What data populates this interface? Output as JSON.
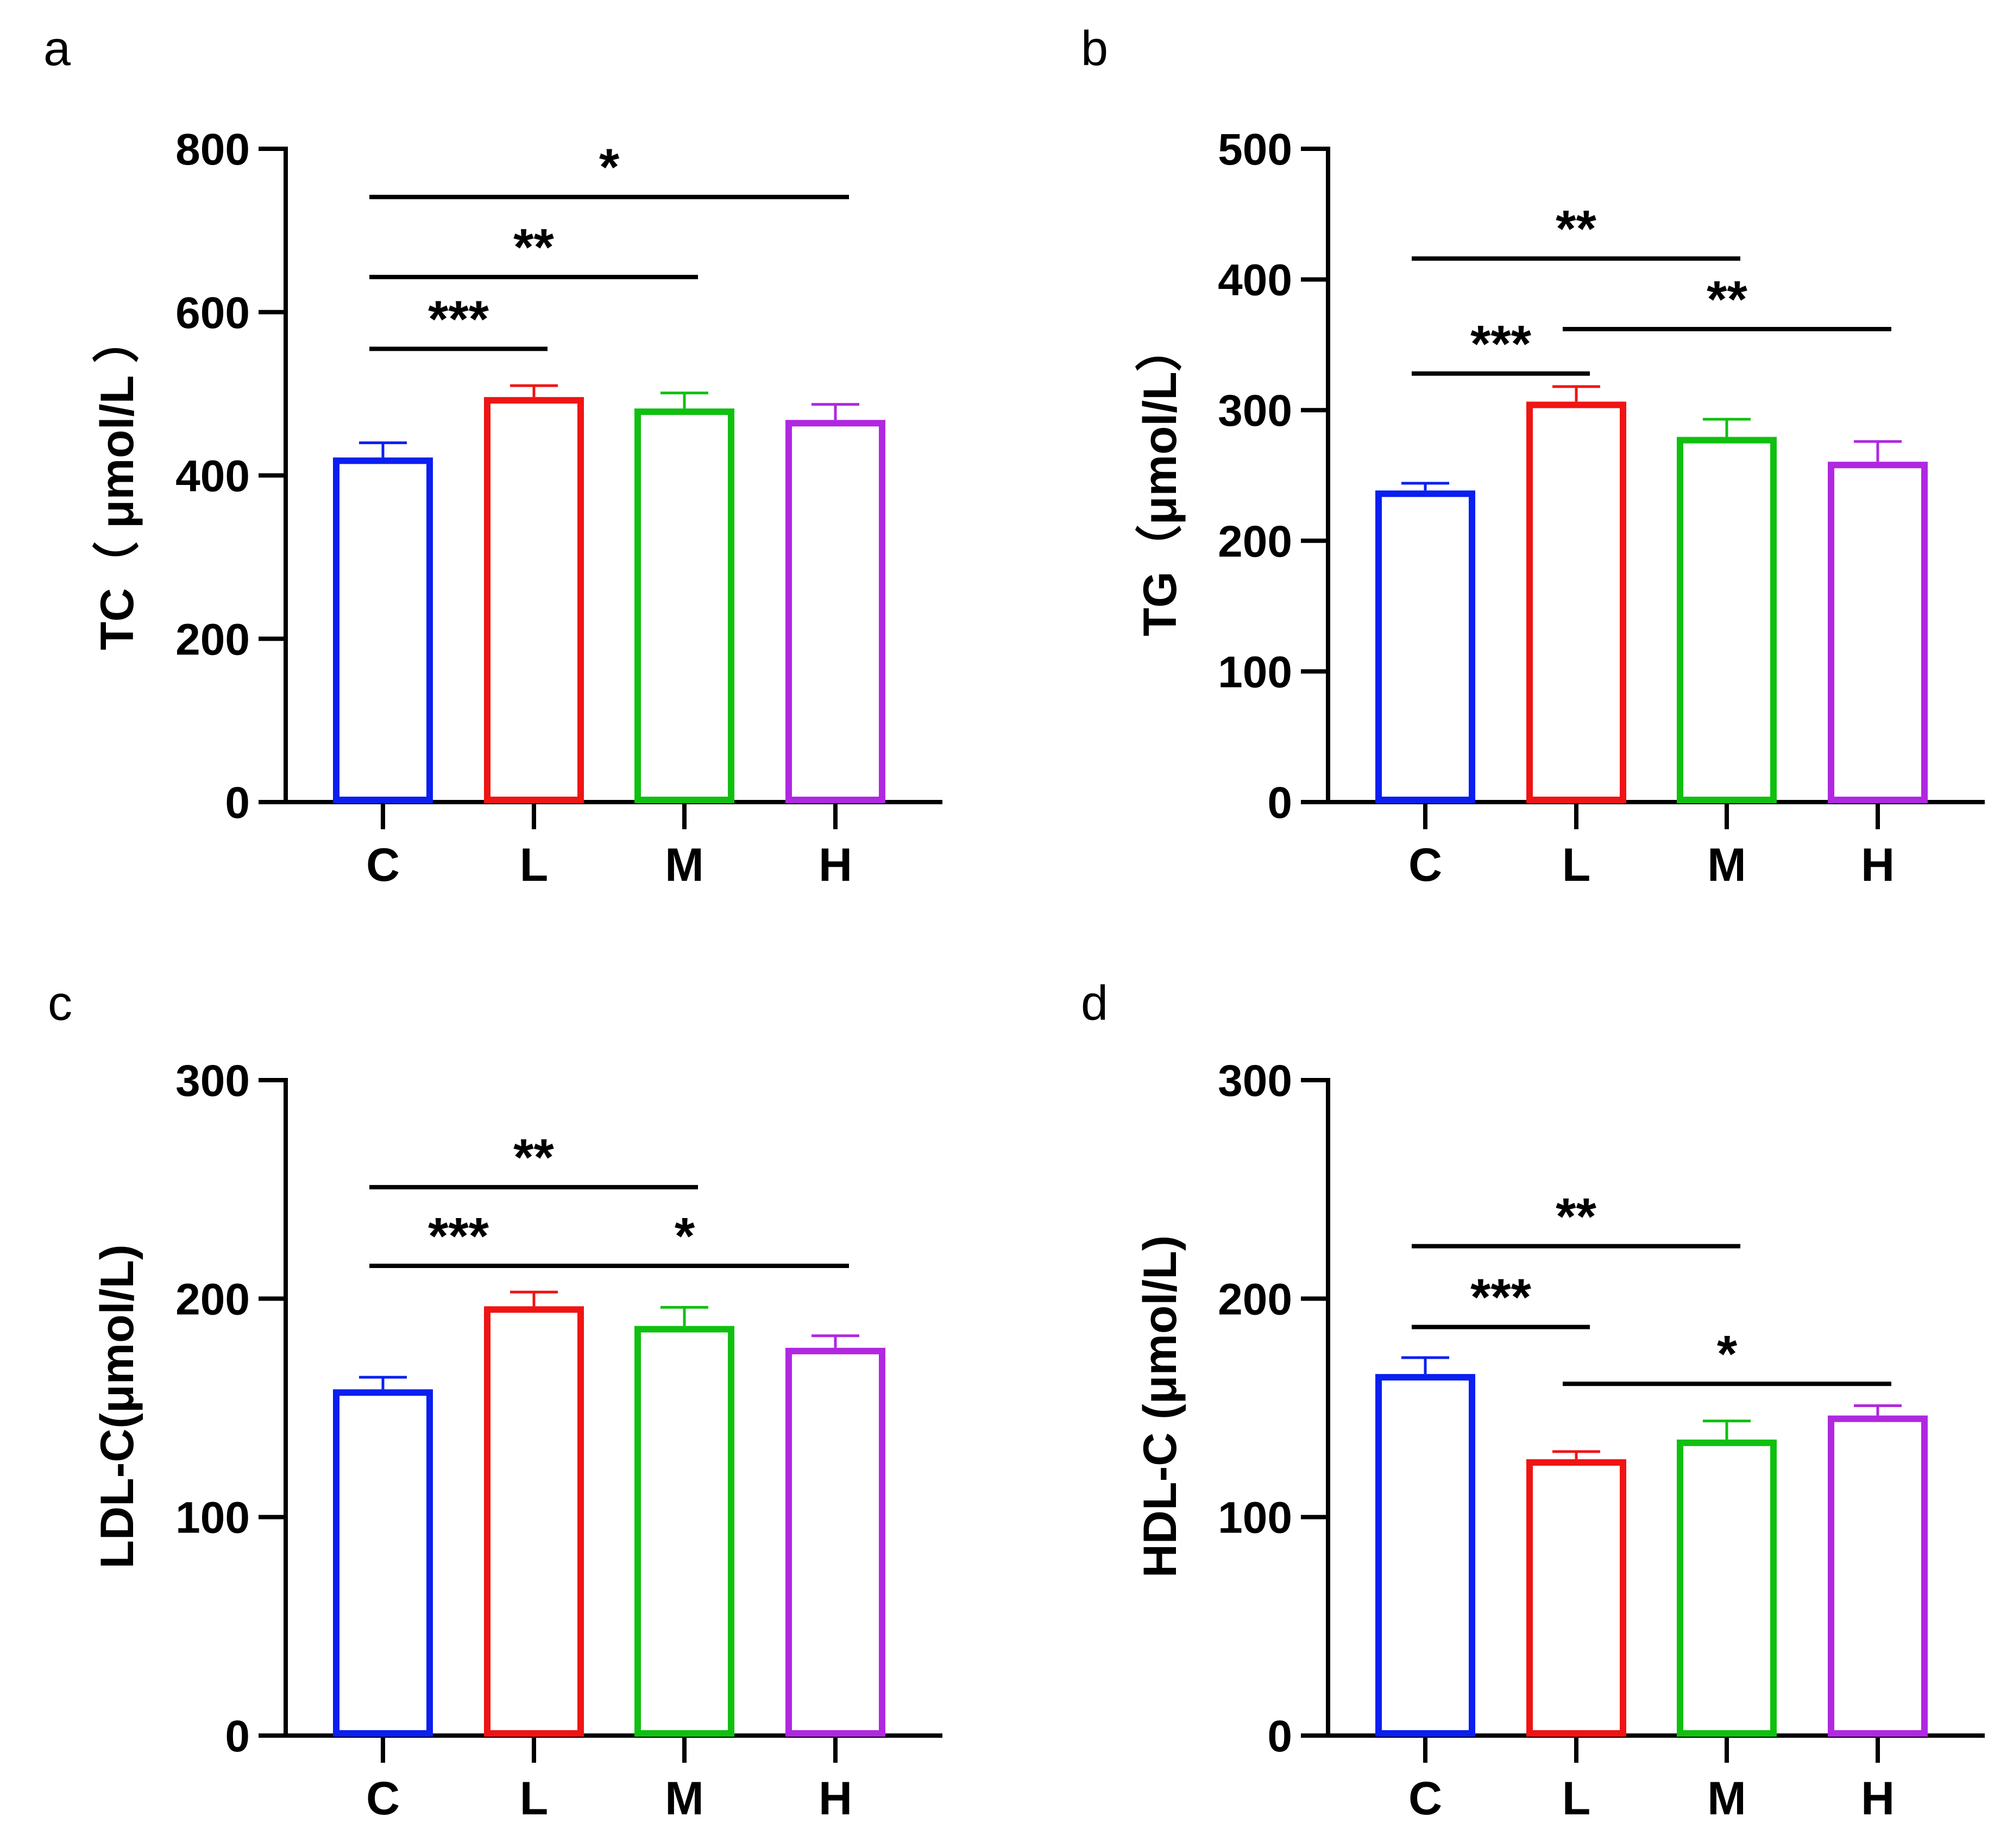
{
  "chart_data": [
    {
      "panel": "a",
      "type": "bar",
      "categories": [
        "C",
        "L",
        "M",
        "H"
      ],
      "values": [
        418,
        492,
        478,
        464
      ],
      "errors": [
        22,
        18,
        23,
        23
      ],
      "ylabel": "TC（ μmol/L ）",
      "ylim": [
        0,
        800
      ],
      "yticks": [
        0,
        200,
        400,
        600,
        800
      ],
      "colors": [
        "#0a1ff0",
        "#f01414",
        "#10c010",
        "#b028e0"
      ],
      "significance": [
        {
          "from": "C",
          "to": "L",
          "label": "***",
          "y": 555
        },
        {
          "from": "C",
          "to": "M",
          "label": "**",
          "y": 643
        },
        {
          "from": "C",
          "to": "H",
          "label": "*",
          "y": 741
        }
      ]
    },
    {
      "panel": "b",
      "type": "bar",
      "categories": [
        "C",
        "L",
        "M",
        "H"
      ],
      "values": [
        236,
        304,
        277,
        258
      ],
      "errors": [
        8,
        14,
        16,
        18
      ],
      "ylabel": "TG（μmol/L）",
      "ylim": [
        0,
        500
      ],
      "yticks": [
        0,
        100,
        200,
        300,
        400,
        500
      ],
      "colors": [
        "#0a1ff0",
        "#f01414",
        "#10c010",
        "#b028e0"
      ],
      "significance": [
        {
          "from": "C",
          "to": "L",
          "label": "***",
          "y": 328
        },
        {
          "from": "L",
          "to": "H",
          "label": "**",
          "y": 362
        },
        {
          "from": "C",
          "to": "M",
          "label": "**",
          "y": 416
        }
      ]
    },
    {
      "panel": "c",
      "type": "bar",
      "categories": [
        "C",
        "L",
        "M",
        "H"
      ],
      "values": [
        157,
        195,
        186,
        176
      ],
      "errors": [
        7,
        8,
        10,
        7
      ],
      "ylabel": "LDL-C(μmol/L)",
      "ylim": [
        0,
        300
      ],
      "yticks": [
        0,
        100,
        200,
        300
      ],
      "colors": [
        "#0a1ff0",
        "#f01414",
        "#10c010",
        "#b028e0"
      ],
      "significance": [
        {
          "from": "C",
          "to": "L",
          "label": "***",
          "y": 215
        },
        {
          "from": "L",
          "to": "H",
          "label": "*",
          "y": 215
        },
        {
          "from": "C",
          "to": "M",
          "label": "**",
          "y": 251
        }
      ]
    },
    {
      "panel": "d",
      "type": "bar",
      "categories": [
        "C",
        "L",
        "M",
        "H"
      ],
      "values": [
        164,
        125,
        134,
        145
      ],
      "errors": [
        9,
        5,
        10,
        6
      ],
      "ylabel": "HDL-C (μmol/L)",
      "ylim": [
        0,
        300
      ],
      "yticks": [
        0,
        100,
        200,
        300
      ],
      "colors": [
        "#0a1ff0",
        "#f01414",
        "#10c010",
        "#b028e0"
      ],
      "significance": [
        {
          "from": "C",
          "to": "L",
          "label": "***",
          "y": 187
        },
        {
          "from": "L",
          "to": "H",
          "label": "*",
          "y": 161
        },
        {
          "from": "C",
          "to": "M",
          "label": "**",
          "y": 224
        }
      ]
    }
  ]
}
